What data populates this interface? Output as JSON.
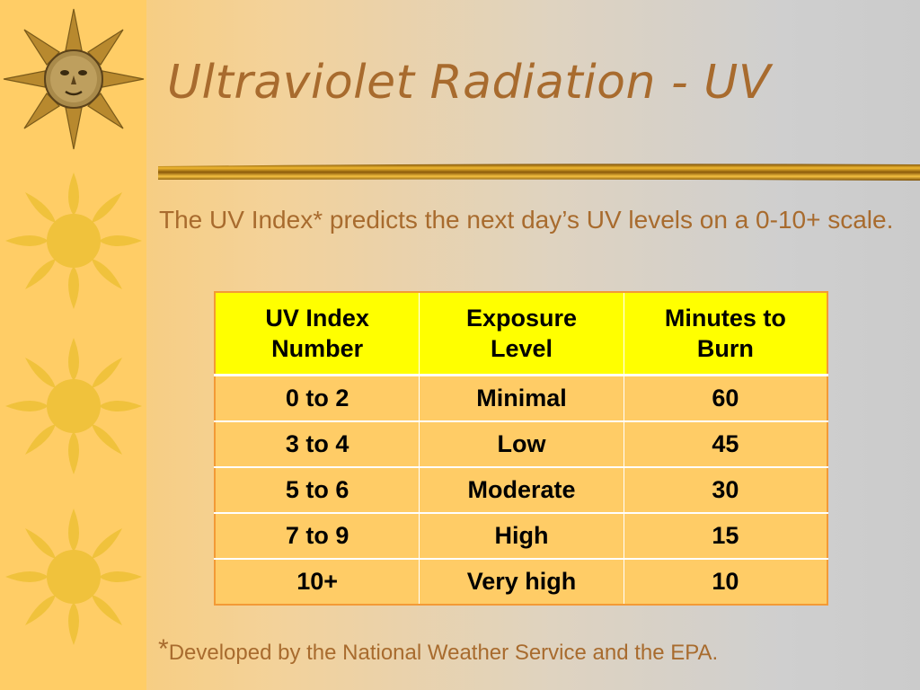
{
  "slide": {
    "title": "Ultraviolet Radiation - UV",
    "intro": "The UV Index* predicts the next day’s UV levels on a 0-10+ scale.",
    "footnote": {
      "marker": "*",
      "text": "Developed by the National Weather Service and the EPA."
    }
  },
  "table": {
    "headers": [
      [
        "UV Index",
        "Number"
      ],
      [
        "Exposure",
        "Level"
      ],
      [
        "Minutes to",
        "Burn"
      ]
    ],
    "rows": [
      [
        "0 to 2",
        "Minimal",
        "60"
      ],
      [
        "3 to 4",
        "Low",
        "45"
      ],
      [
        "5 to 6",
        "Moderate",
        "30"
      ],
      [
        "7 to 9",
        "High",
        "15"
      ],
      [
        "10+",
        "Very high",
        "10"
      ]
    ]
  },
  "decor": {
    "icons": [
      "sun-face-icon",
      "sun-icon",
      "sun-icon",
      "sun-icon"
    ],
    "colors": {
      "strip": "#ffcd66",
      "sun": "#f0c23c",
      "accent_text": "#a86b2e",
      "table_header": "#ffff00",
      "table_body": "#ffcc66",
      "table_border": "#f39a36"
    }
  }
}
